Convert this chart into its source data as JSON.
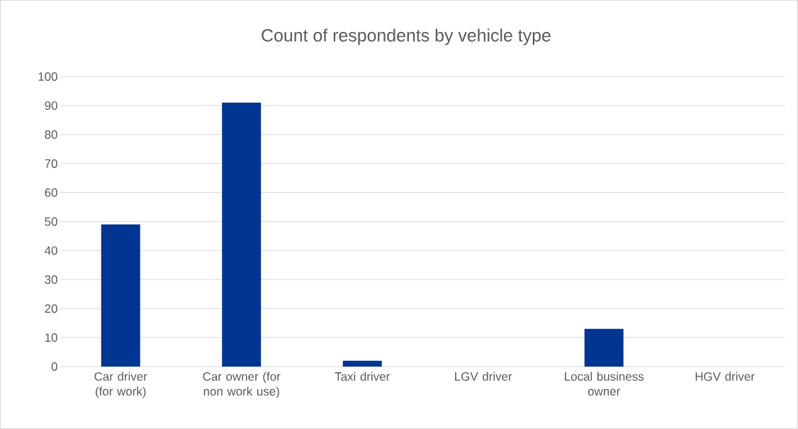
{
  "chart_data": {
    "type": "bar",
    "title": "Count of respondents by vehicle type",
    "categories": [
      "Car driver (for work)",
      "Car owner (for non work use)",
      "Taxi driver",
      "LGV driver",
      "Local business owner",
      "HGV driver"
    ],
    "values": [
      49,
      91,
      2,
      0,
      13,
      0
    ],
    "color": "#003591",
    "ylim": [
      0,
      100
    ],
    "yticks": [
      0,
      10,
      20,
      30,
      40,
      50,
      60,
      70,
      80,
      90,
      100
    ],
    "grid": "y"
  }
}
